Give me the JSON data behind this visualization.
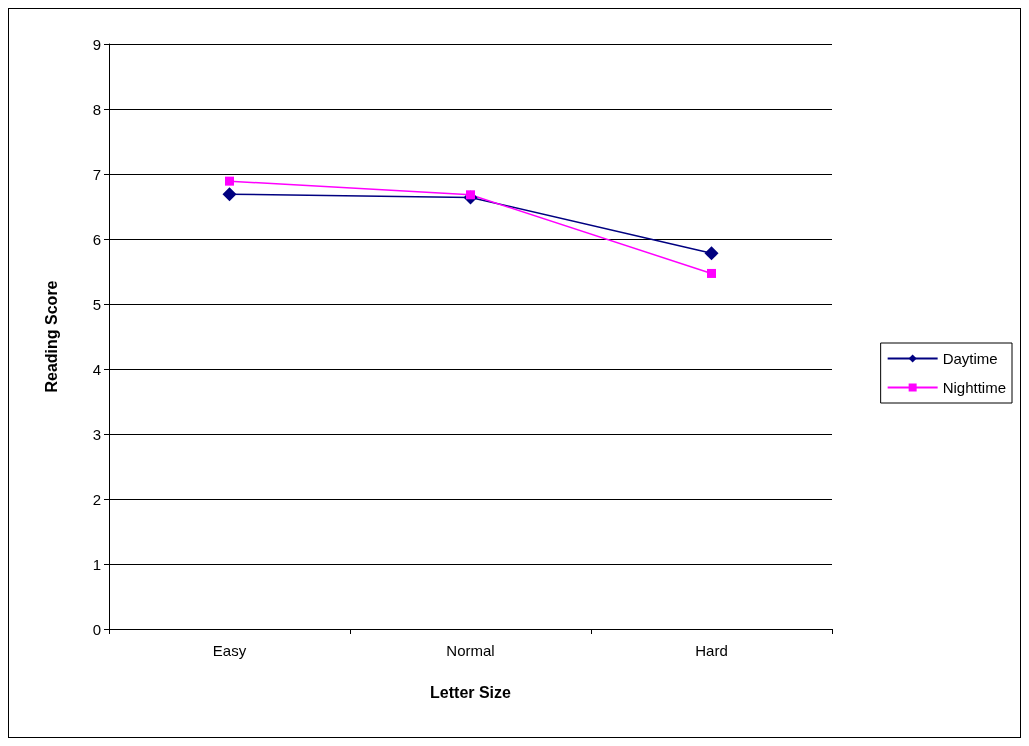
{
  "chart_data": {
    "type": "line",
    "xlabel": "Letter Size",
    "ylabel": "Reading Score",
    "categories": [
      "Easy",
      "Normal",
      "Hard"
    ],
    "series": [
      {
        "name": "Daytime",
        "color": "#000080",
        "marker": "diamond",
        "values": [
          6.69,
          6.64,
          5.78
        ]
      },
      {
        "name": "Nighttime",
        "color": "#ff00ff",
        "marker": "square",
        "values": [
          6.89,
          6.68,
          5.47
        ]
      }
    ],
    "ylim": [
      0,
      9
    ],
    "yticks": [
      0,
      1,
      2,
      3,
      4,
      5,
      6,
      7,
      8,
      9
    ],
    "grid": "y",
    "legend": "right"
  }
}
